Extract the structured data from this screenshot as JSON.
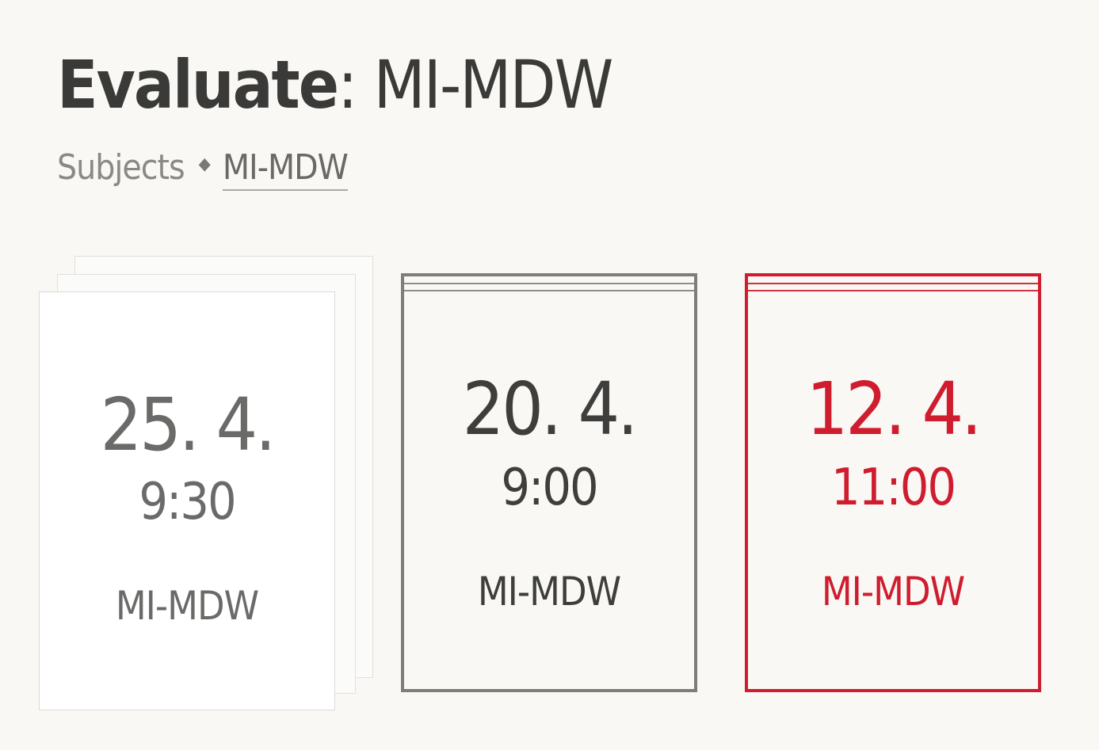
{
  "header": {
    "title_verb": "Evaluate",
    "title_separator": ":",
    "title_subject": "MI-MDW"
  },
  "breadcrumb": {
    "items": [
      {
        "label": "Subjects"
      },
      {
        "label": "MI-MDW"
      }
    ],
    "separator_icon": "diamond-icon"
  },
  "cards": [
    {
      "state": "upcoming",
      "stacked": true,
      "date": "25. 4.",
      "time": "9:30",
      "subject": "MI-MDW"
    },
    {
      "state": "done",
      "date": "20. 4.",
      "time": "9:00",
      "subject": "MI-MDW",
      "border_color": "#7d7d7b"
    },
    {
      "state": "missed",
      "date": "12. 4.",
      "time": "11:00",
      "subject": "MI-MDW",
      "accent_color": "#cf1c2e"
    }
  ],
  "colors": {
    "background": "#f9f8f4",
    "text": "#3c3c3a",
    "muted": "#8a8986",
    "accent_red": "#cf1c2e"
  }
}
